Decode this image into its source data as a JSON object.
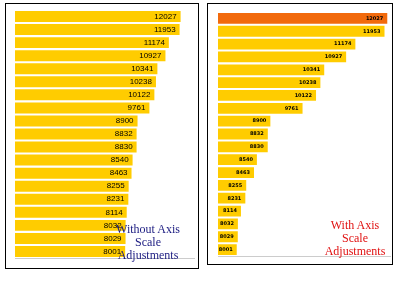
{
  "chart_data": [
    {
      "type": "bar",
      "orientation": "horizontal",
      "categories": [
        null,
        null,
        null,
        null,
        null,
        null,
        null,
        null,
        null,
        null,
        null,
        null,
        null,
        null,
        null,
        null,
        null,
        null,
        null
      ],
      "values": [
        12027,
        11953,
        11174,
        10927,
        10341,
        10238,
        10122,
        9761,
        8900,
        8832,
        8830,
        8540,
        8463,
        8255,
        8231,
        8114,
        8032,
        8029,
        8001
      ],
      "color": "#ffcc00",
      "xlim": [
        0,
        13000
      ],
      "grid": false,
      "data_labels": true,
      "tick_labels": false,
      "annotation": "Without Axis Scale Adjustments"
    },
    {
      "type": "bar",
      "orientation": "horizontal",
      "categories": [
        null,
        null,
        null,
        null,
        null,
        null,
        null,
        null,
        null,
        null,
        null,
        null,
        null,
        null,
        null,
        null,
        null,
        null,
        null
      ],
      "values": [
        12027,
        11953,
        11174,
        10927,
        10341,
        10238,
        10122,
        9761,
        8900,
        8832,
        8830,
        8540,
        8463,
        8255,
        8231,
        8114,
        8032,
        8029,
        8001
      ],
      "colors": [
        "#f26a0c",
        "#ffcc00",
        "#ffcc00",
        "#ffcc00",
        "#ffcc00",
        "#ffcc00",
        "#ffcc00",
        "#ffcc00",
        "#ffcc00",
        "#ffcc00",
        "#ffcc00",
        "#ffcc00",
        "#ffcc00",
        "#ffcc00",
        "#ffcc00",
        "#ffcc00",
        "#ffcc00",
        "#ffcc00",
        "#ffcc00"
      ],
      "xlim": [
        7500,
        12100
      ],
      "grid": false,
      "data_labels": true,
      "tick_labels": false,
      "annotation": "With Axis Scale Adjustments"
    }
  ]
}
